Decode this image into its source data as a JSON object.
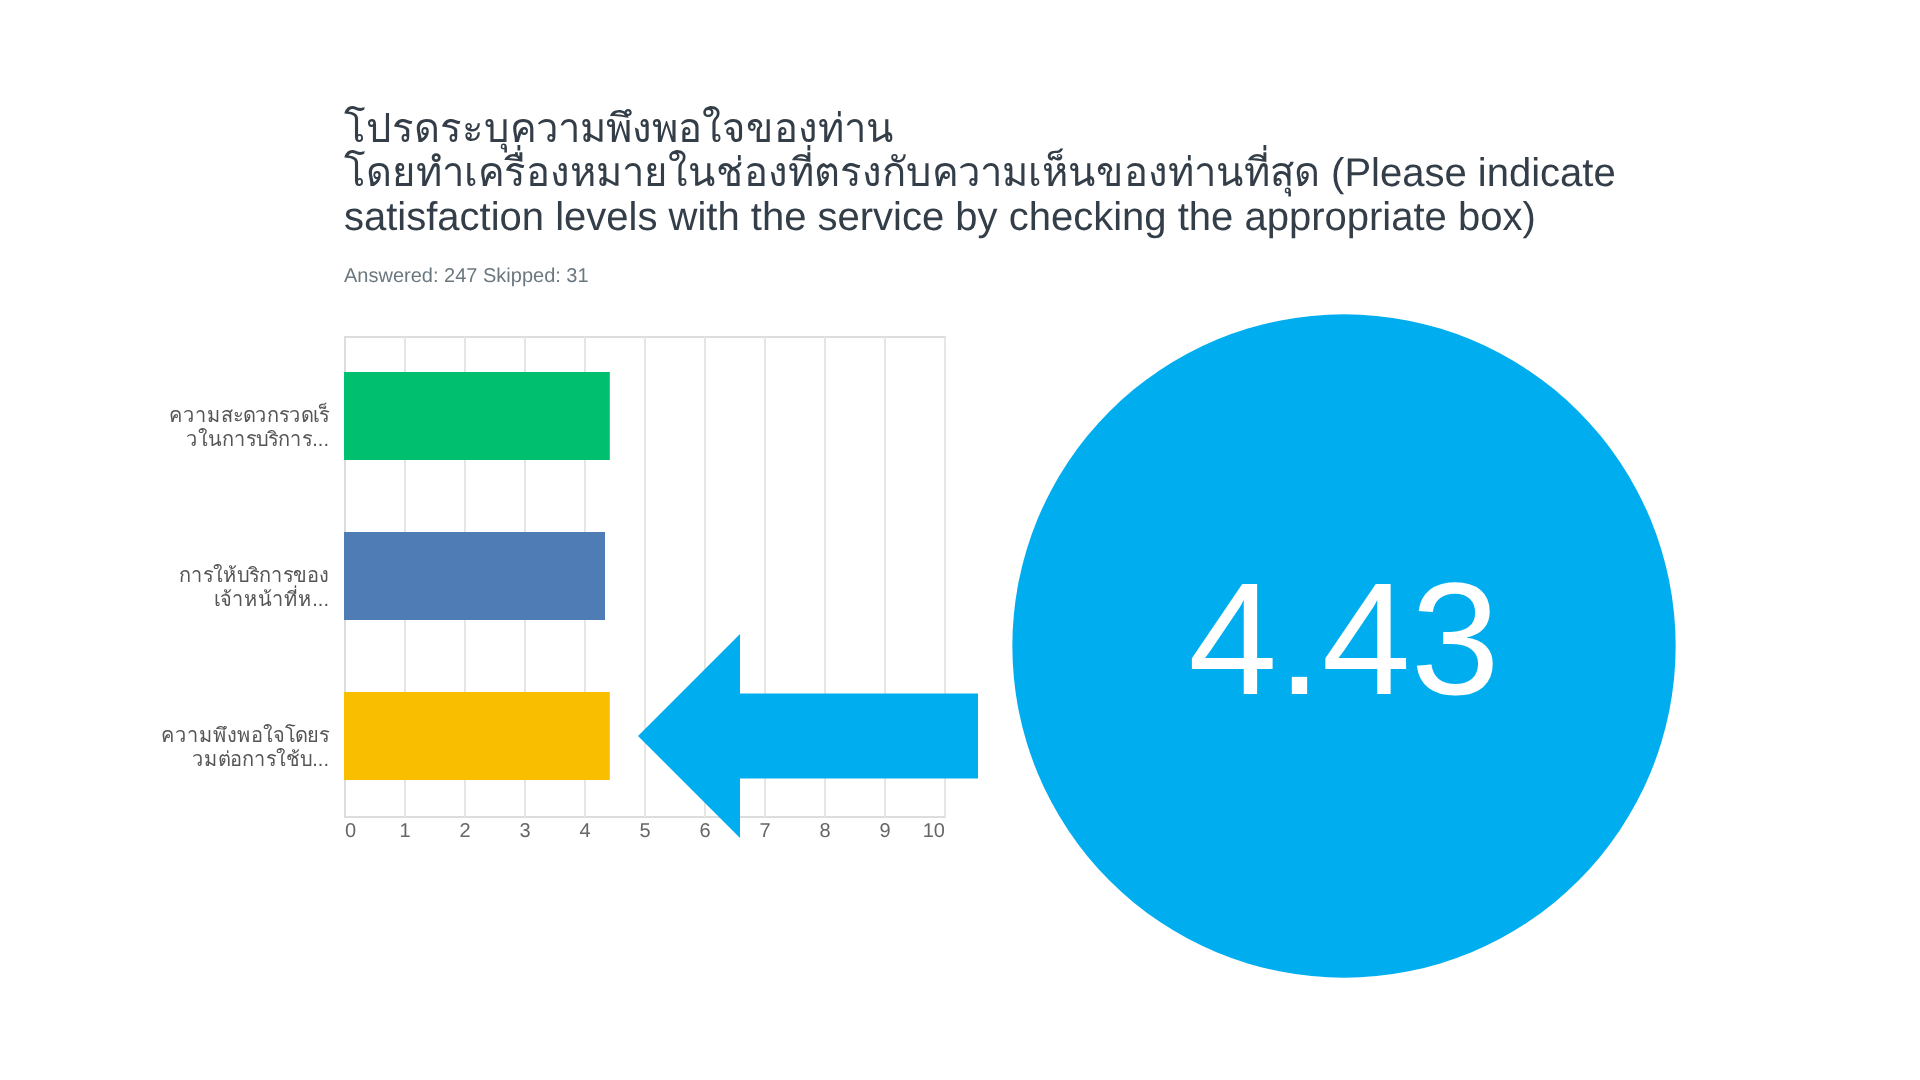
{
  "chart_data": {
    "type": "bar",
    "orientation": "horizontal",
    "title": "โปรดระบุความพึงพอใจของท่าน โดยทำเครื่องหมายในช่องที่ตรงกับความเห็นของท่านที่สุด (Please indicate satisfaction levels with the service by checking the appropriate box)",
    "subtitle": "Answered: 247    Skipped: 31",
    "categories": [
      "ความสะดวกรวดเร็วในการบริการ...",
      "การให้บริการของเจ้าหน้าที่ห...",
      "ความพึงพอใจโดยรวมต่อการใช้บ..."
    ],
    "values": [
      4.43,
      4.35,
      4.43
    ],
    "colors": [
      "#00bf6f",
      "#507cb6",
      "#f9be00"
    ],
    "xlim": [
      0,
      10
    ],
    "xticks": [
      0,
      1,
      2,
      3,
      4,
      5,
      6,
      7,
      8,
      9,
      10
    ],
    "grid": "x",
    "annotations": [
      "4.43"
    ]
  }
}
